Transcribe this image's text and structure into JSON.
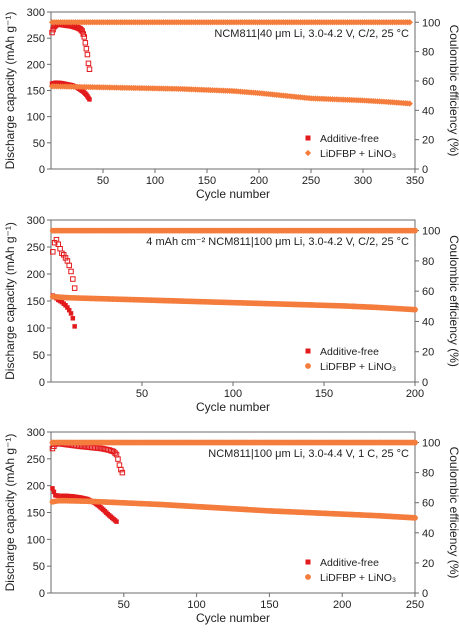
{
  "colors": {
    "additive_free": "#e31a1c",
    "lidfbp": "#f47c3c",
    "frame": "#6b6b6b"
  },
  "chart_data": [
    {
      "type": "scatter",
      "annotation": "NCM811|40 μm Li, 3.0-4.2 V, C/2, 25 °C",
      "xlabel": "Cycle number",
      "ylabel": "Discharge capacity (mAh g⁻¹)",
      "y2label": "Coulombic efficiency (%)",
      "xlim": [
        0,
        350
      ],
      "xticks": [
        50,
        100,
        150,
        200,
        250,
        300,
        350
      ],
      "ylim": [
        0,
        300
      ],
      "yticks": [
        0,
        50,
        100,
        150,
        200,
        250,
        300
      ],
      "y2lim": [
        0,
        107
      ],
      "y2ticks": [
        0,
        20,
        40,
        60,
        80,
        100
      ],
      "legend_position": "bottom-right",
      "legend": [
        "Additive-free",
        "LiDFBP + LiNO₃"
      ],
      "series": [
        {
          "name": "Additive-free",
          "kind": "capacity",
          "marker": "square-filled",
          "x": [
            1,
            5,
            10,
            15,
            20,
            25,
            28,
            31,
            34,
            36,
            37
          ],
          "y": [
            163,
            165,
            164,
            162,
            160,
            156,
            152,
            148,
            142,
            136,
            133
          ]
        },
        {
          "name": "Additive-free",
          "kind": "efficiency",
          "marker": "square-open",
          "x": [
            1,
            3,
            6,
            10,
            15,
            20,
            25,
            28,
            30,
            32,
            33,
            34,
            35,
            36,
            37
          ],
          "y": [
            93,
            97,
            99,
            98.5,
            98,
            97.5,
            96.5,
            95.5,
            94,
            90,
            86,
            82,
            78,
            72,
            68
          ]
        },
        {
          "name": "LiDFBP + LiNO₃",
          "kind": "capacity",
          "marker": "diamond-filled",
          "x": [
            1,
            25,
            50,
            75,
            100,
            125,
            150,
            175,
            200,
            225,
            250,
            275,
            300,
            325,
            345
          ],
          "y": [
            158,
            157,
            156,
            155,
            154,
            153,
            151,
            149,
            145,
            140,
            135,
            133,
            131,
            128,
            125
          ]
        },
        {
          "name": "LiDFBP + LiNO₃",
          "kind": "efficiency",
          "marker": "diamond-filled",
          "x": [
            1,
            345
          ],
          "y": [
            100,
            100
          ]
        }
      ]
    },
    {
      "type": "scatter",
      "annotation": "4 mAh cm⁻² NCM811|100 μm Li, 3.0-4.2 V, C/2, 25 °C",
      "xlabel": "Cycle number",
      "ylabel": "Discharge capacity (mAh g⁻¹)",
      "y2label": "Coulombic efficiency (%)",
      "xlim": [
        0,
        200
      ],
      "xticks": [
        50,
        100,
        150,
        200
      ],
      "ylim": [
        0,
        300
      ],
      "yticks": [
        0,
        50,
        100,
        150,
        200,
        250,
        300
      ],
      "y2lim": [
        0,
        107
      ],
      "y2ticks": [
        0,
        20,
        40,
        60,
        80,
        100
      ],
      "legend_position": "bottom-right",
      "legend": [
        "Additive-free",
        "LiDFBP + LiNO₃"
      ],
      "series": [
        {
          "name": "Additive-free",
          "kind": "capacity",
          "marker": "square-filled",
          "x": [
            1,
            2,
            3,
            4,
            5,
            6,
            7,
            8,
            9,
            10,
            11,
            12,
            13
          ],
          "y": [
            160,
            158,
            155,
            152,
            150,
            148,
            145,
            142,
            138,
            133,
            127,
            118,
            103
          ]
        },
        {
          "name": "Additive-free",
          "kind": "efficiency",
          "marker": "square-open",
          "x": [
            1,
            2,
            3,
            4,
            5,
            6,
            7,
            8,
            9,
            10,
            11,
            12,
            13
          ],
          "y": [
            86,
            92,
            94,
            91,
            88,
            85,
            84,
            82,
            80,
            77,
            73,
            68,
            62
          ]
        },
        {
          "name": "LiDFBP + LiNO₃",
          "kind": "capacity",
          "marker": "circle-filled",
          "x": [
            1,
            10,
            20,
            40,
            60,
            80,
            100,
            120,
            140,
            160,
            180,
            200
          ],
          "y": [
            158,
            156,
            155,
            153,
            151,
            149,
            147,
            145,
            143,
            141,
            138,
            134
          ]
        },
        {
          "name": "LiDFBP + LiNO₃",
          "kind": "efficiency",
          "marker": "circle-filled",
          "x": [
            1,
            200
          ],
          "y": [
            100,
            100
          ]
        }
      ]
    },
    {
      "type": "scatter",
      "annotation": "NCM811|100 μm Li, 3.0-4.4 V, 1 C, 25 °C",
      "xlabel": "Cycle number",
      "ylabel": "Discharge capacity (mAh g⁻¹)",
      "y2label": "Coulombic efficiency (%)",
      "xlim": [
        0,
        250
      ],
      "xticks": [
        50,
        100,
        150,
        200,
        250
      ],
      "ylim": [
        0,
        300
      ],
      "yticks": [
        0,
        50,
        100,
        150,
        200,
        250,
        300
      ],
      "y2lim": [
        0,
        107
      ],
      "y2ticks": [
        0,
        20,
        40,
        60,
        80,
        100
      ],
      "legend_position": "bottom-right",
      "legend": [
        "Additive-free",
        "LiDFBP + LiNO₃"
      ],
      "series": [
        {
          "name": "Additive-free",
          "kind": "capacity",
          "marker": "square-filled",
          "x": [
            1,
            3,
            6,
            10,
            15,
            20,
            25,
            30,
            33,
            36,
            39,
            42,
            45
          ],
          "y": [
            195,
            182,
            181,
            181,
            180,
            178,
            175,
            168,
            162,
            155,
            147,
            140,
            133
          ]
        },
        {
          "name": "Additive-free",
          "kind": "efficiency",
          "marker": "square-open",
          "x": [
            1,
            3,
            5,
            8,
            12,
            16,
            20,
            25,
            30,
            35,
            40,
            43,
            45,
            46,
            47,
            48,
            49
          ],
          "y": [
            96,
            99,
            99.5,
            99,
            98.5,
            98,
            97.5,
            97,
            96.5,
            96,
            95,
            94,
            92,
            89,
            85,
            82,
            80
          ]
        },
        {
          "name": "LiDFBP + LiNO₃",
          "kind": "capacity",
          "marker": "circle-filled",
          "x": [
            1,
            5,
            10,
            25,
            50,
            75,
            100,
            125,
            150,
            175,
            200,
            225,
            250
          ],
          "y": [
            170,
            172,
            172,
            171,
            168,
            165,
            161,
            157,
            153,
            150,
            147,
            144,
            140
          ]
        },
        {
          "name": "LiDFBP + LiNO₃",
          "kind": "efficiency",
          "marker": "circle-filled",
          "x": [
            1,
            250
          ],
          "y": [
            100,
            100
          ]
        }
      ]
    }
  ]
}
